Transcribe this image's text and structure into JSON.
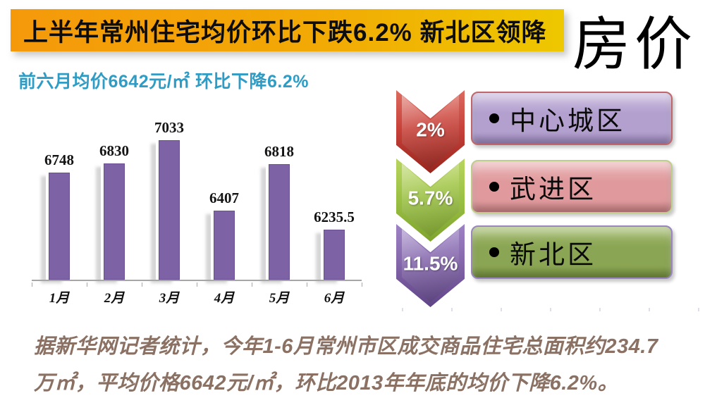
{
  "header": {
    "banner_title": "上半年常州住宅均价环比下跌6.2% 新北区领降",
    "brand": "房价",
    "subtitle": "前六月均价6642元/㎡ 环比下降6.2%",
    "subtitle_color": "#2e9cc4",
    "banner_gradient": [
      "#f5990a",
      "#eec800"
    ]
  },
  "chart_data": {
    "type": "bar",
    "title": "",
    "xlabel": "",
    "ylabel": "",
    "categories": [
      "1月",
      "2月",
      "3月",
      "4月",
      "5月",
      "6月"
    ],
    "values": [
      6748,
      6830,
      7033,
      6407,
      6818,
      6235.5
    ],
    "value_labels": [
      "6748",
      "6830",
      "7033",
      "6407",
      "6818",
      "6235.5"
    ],
    "ylim": [
      5800,
      7300
    ],
    "grid": false,
    "legend": false,
    "bar_color": "#7d63a5",
    "axis_color": "#a6a6a6",
    "unit": "元/㎡"
  },
  "decline_list": {
    "items": [
      {
        "percent": "2%",
        "label": "中心城区",
        "arrow_light": "#dc6a5f",
        "arrow_color": "#c8423a",
        "arrow_dark": "#98251d",
        "box_light": "#cdbfe0",
        "box_fill": "#b3a0cf",
        "box_dark": "#9a86ba",
        "box_border": "#c0666a"
      },
      {
        "percent": "5.7%",
        "label": "武进区",
        "arrow_light": "#b8d55e",
        "arrow_color": "#9cc245",
        "arrow_dark": "#7fa42e",
        "box_light": "#ecb9bb",
        "box_fill": "#e09a9d",
        "box_dark": "#c98184",
        "box_border": "#bece8c"
      },
      {
        "percent": "11.5%",
        "label": "新北区",
        "arrow_light": "#9d82c4",
        "arrow_color": "#8568ac",
        "arrow_dark": "#5f4486",
        "box_light": "#a8bf77",
        "box_fill": "#8aa553",
        "box_dark": "#74903f",
        "box_border": "#9b86c0"
      }
    ]
  },
  "footer": {
    "lines": [
      "据新华网记者统计，今年1-6月常州市区成交商品住宅总面积约234.7",
      "万㎡，平均价格6642元/㎡，环比2013年年底的均价下降6.2%。"
    ],
    "text_color": "#8a7163"
  }
}
